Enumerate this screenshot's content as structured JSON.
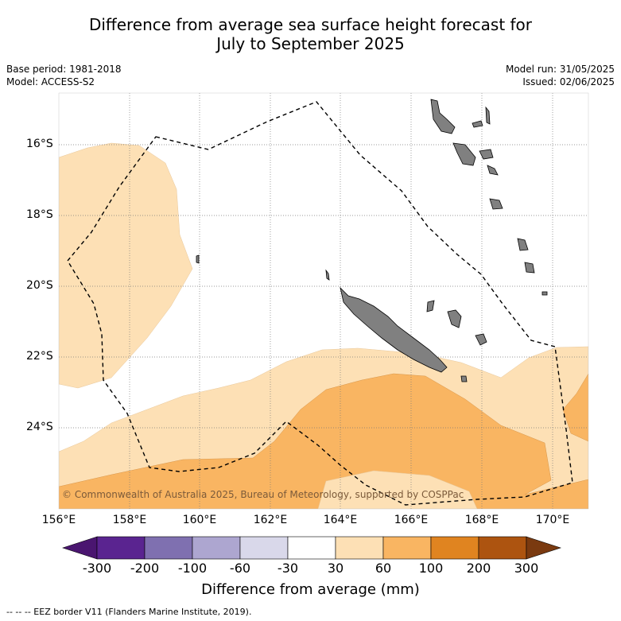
{
  "title_line1": "Difference from average sea surface height forecast for",
  "title_line2": "July to September 2025",
  "meta_left": [
    "Base period: 1981-2018",
    "Model: ACCESS-S2"
  ],
  "meta_right": [
    "Model run: 31/05/2025",
    "Issued: 02/06/2025"
  ],
  "longitude_labels": [
    "156°E",
    "158°E",
    "160°E",
    "162°E",
    "164°E",
    "166°E",
    "168°E",
    "170°E"
  ],
  "latitude_labels": [
    "16°S",
    "18°S",
    "20°S",
    "22°S",
    "24°S"
  ],
  "copyright": "© Commonwealth of Australia 2025, Bureau of Meteorology, supported by COSPPac",
  "colorbar": {
    "title": "Difference from average (mm)",
    "tick_labels": [
      "-300",
      "-200",
      "-100",
      "-60",
      "-30",
      "30",
      "60",
      "100",
      "200",
      "300"
    ],
    "colors": [
      "#4a1670",
      "#5a2490",
      "#7f70b0",
      "#ada6d0",
      "#d9d8ea",
      "#ffffff",
      "#fde0b5",
      "#f9b562",
      "#e08420",
      "#ad5410",
      "#7a3a10"
    ]
  },
  "footnote": "-- -- -- EEZ border V11 (Flanders Marine Institute, 2019).",
  "colors": {
    "land": "#808080",
    "light_orange": "#fde0b5",
    "mid_orange": "#f9b562",
    "grid": "#7a7a7a"
  }
}
